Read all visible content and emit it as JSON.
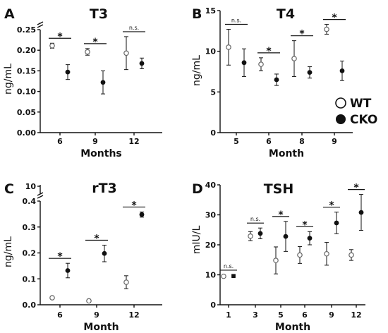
{
  "legend": {
    "items": [
      {
        "name": "WT",
        "marker": "open-circle"
      },
      {
        "name": "CKO",
        "marker": "filled-circle"
      }
    ],
    "placement": "right-middle"
  },
  "colors": {
    "marker": "#111111",
    "wt_fill": "#ffffff",
    "wt_stroke": "#666666"
  },
  "chart_data": [
    {
      "panel": "A",
      "type": "scatter",
      "title": "T3",
      "xlabel": "Months",
      "ylabel": "ng/mL",
      "categories": [
        "6",
        "9",
        "12"
      ],
      "ylim": [
        0,
        0.25
      ],
      "y_break": true,
      "y_ticks": [
        0.0,
        0.05,
        0.1,
        0.15,
        0.2,
        0.25
      ],
      "y_tick_labels": [
        "0.00",
        "0.05",
        "0.10",
        "0.15",
        "0.20",
        "0.25"
      ],
      "series": [
        {
          "name": "WT",
          "values": [
            0.211,
            0.196,
            0.193
          ],
          "errors": [
            0.006,
            0.008,
            0.04
          ]
        },
        {
          "name": "CKO",
          "values": [
            0.147,
            0.122,
            0.168
          ],
          "errors": [
            0.018,
            0.028,
            0.013
          ]
        }
      ],
      "significance": [
        "*",
        "*",
        "n.s."
      ]
    },
    {
      "panel": "B",
      "type": "scatter",
      "title": "T4",
      "xlabel": "Month",
      "ylabel": "ng/mL",
      "categories": [
        "5",
        "6",
        "8",
        "9"
      ],
      "ylim": [
        0,
        15
      ],
      "y_ticks": [
        0,
        5,
        10,
        15
      ],
      "y_tick_labels": [
        "0",
        "5",
        "10",
        "15"
      ],
      "series": [
        {
          "name": "WT",
          "values": [
            10.5,
            8.4,
            9.1,
            12.7
          ],
          "errors": [
            2.2,
            0.8,
            2.2,
            0.6
          ]
        },
        {
          "name": "CKO",
          "values": [
            8.6,
            6.5,
            7.4,
            7.6
          ],
          "errors": [
            1.7,
            0.7,
            0.7,
            1.2
          ]
        }
      ],
      "significance": [
        "n.s.",
        "*",
        "*",
        "*"
      ]
    },
    {
      "panel": "C",
      "type": "scatter",
      "title": "rT3",
      "xlabel": "Month",
      "ylabel": "ng/mL",
      "categories": [
        "6",
        "9",
        "12"
      ],
      "ylim": [
        0,
        0.4
      ],
      "y_break": true,
      "y_ticks": [
        0.0,
        0.1,
        0.2,
        0.3,
        0.4
      ],
      "y_tick_labels": [
        "0.0",
        "0.1",
        "0.2",
        "0.3",
        "0.4"
      ],
      "y_extra_tick": "10",
      "series": [
        {
          "name": "WT",
          "values": [
            0.027,
            0.015,
            0.087
          ],
          "errors": [
            0.003,
            0.006,
            0.025
          ]
        },
        {
          "name": "CKO",
          "values": [
            0.132,
            0.198,
            0.348
          ],
          "errors": [
            0.028,
            0.032,
            0.01
          ]
        }
      ],
      "significance": [
        "*",
        "*",
        "*"
      ]
    },
    {
      "panel": "D",
      "type": "scatter",
      "title": "TSH",
      "xlabel": "Month",
      "ylabel": "mIU/L",
      "categories": [
        "1",
        "3",
        "5",
        "6",
        "9",
        "12"
      ],
      "ylim": [
        0,
        40
      ],
      "y_ticks": [
        0,
        10,
        20,
        30,
        40
      ],
      "y_tick_labels": [
        "0",
        "10",
        "20",
        "30",
        "40"
      ],
      "series": [
        {
          "name": "WT",
          "values": [
            9.5,
            22.9,
            14.8,
            16.6,
            17.0,
            16.6
          ],
          "errors": [
            0.4,
            1.5,
            4.5,
            2.8,
            3.8,
            1.8
          ]
        },
        {
          "name": "CKO",
          "values": [
            9.6,
            23.8,
            22.8,
            22.2,
            27.3,
            30.8
          ],
          "errors": [
            0.3,
            1.8,
            5.0,
            2.2,
            3.6,
            6.0
          ]
        }
      ],
      "significance": [
        "n.s.",
        "n.s.",
        "*",
        "*",
        "*",
        "*"
      ]
    }
  ]
}
